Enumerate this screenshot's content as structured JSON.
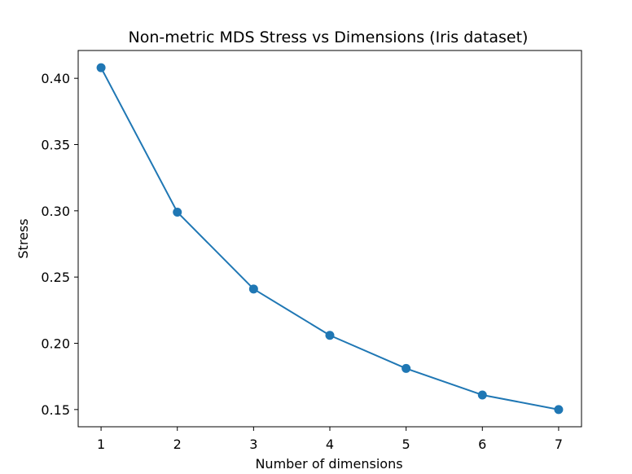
{
  "chart_data": {
    "type": "line",
    "title": "Non-metric MDS Stress vs Dimensions (Iris dataset)",
    "xlabel": "Number of dimensions",
    "ylabel": "Stress",
    "x": [
      1,
      2,
      3,
      4,
      5,
      6,
      7
    ],
    "series": [
      {
        "values": [
          0.408,
          0.299,
          0.241,
          0.206,
          0.181,
          0.161,
          0.15
        ]
      }
    ],
    "xticks": [
      "1",
      "2",
      "3",
      "4",
      "5",
      "6",
      "7"
    ],
    "yticks": [
      "0.15",
      "0.20",
      "0.25",
      "0.30",
      "0.35",
      "0.40"
    ],
    "xlim": [
      0.7,
      7.3
    ],
    "ylim": [
      0.137,
      0.421
    ],
    "grid": false,
    "legend": "none",
    "colors": {
      "line": "#1f77b4",
      "marker": "#1f77b4",
      "axes": "#000000"
    }
  }
}
